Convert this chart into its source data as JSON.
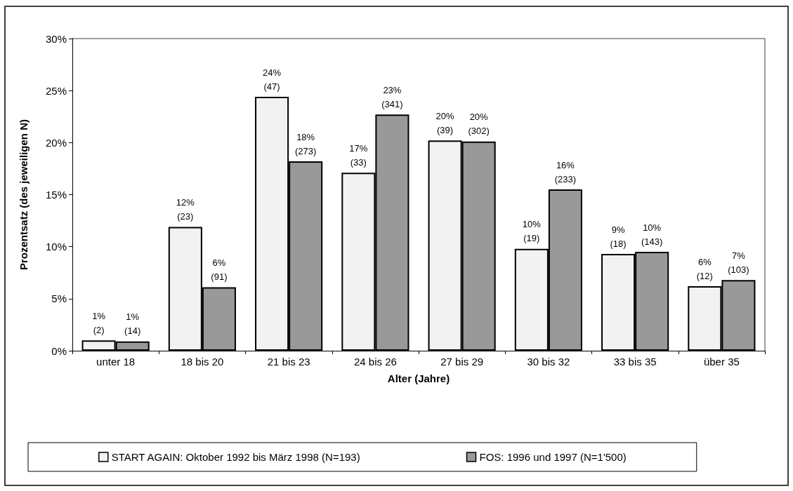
{
  "chart_data": {
    "type": "bar",
    "xlabel": "Alter (Jahre)",
    "ylabel": "Prozentsatz (des jeweiligen N)",
    "categories": [
      "unter 18",
      "18 bis 20",
      "21 bis 23",
      "24 bis 26",
      "27 bis 29",
      "30 bis 32",
      "33 bis 35",
      "über 35"
    ],
    "series": [
      {
        "name": "START AGAIN: Oktober 1992 bis März 1998 (N=193)",
        "color": "#f2f2f2",
        "values": [
          1.0,
          11.9,
          24.4,
          17.1,
          20.2,
          9.8,
          9.3,
          6.2
        ],
        "value_labels": [
          "1%\n(2)",
          "12%\n(23)",
          "24%\n(47)",
          "17%\n(33)",
          "20%\n(39)",
          "10%\n(19)",
          "9%\n(18)",
          "6%\n(12)"
        ]
      },
      {
        "name": "FOS: 1996 und 1997 (N=1'500)",
        "color": "#999999",
        "values": [
          0.9,
          6.1,
          18.2,
          22.7,
          20.1,
          15.5,
          9.5,
          6.8
        ],
        "value_labels": [
          "1%\n(14)",
          "6%\n(91)",
          "18%\n(273)",
          "23%\n(341)",
          "20%\n(302)",
          "16%\n(233)",
          "10%\n(143)",
          "7%\n(103)"
        ]
      }
    ],
    "ylim": [
      0,
      30
    ],
    "yticks": [
      {
        "value": 0,
        "label": "0%"
      },
      {
        "value": 5,
        "label": "5%"
      },
      {
        "value": 10,
        "label": "10%"
      },
      {
        "value": 15,
        "label": "15%"
      },
      {
        "value": 20,
        "label": "20%"
      },
      {
        "value": 25,
        "label": "25%"
      },
      {
        "value": 30,
        "label": "30%"
      }
    ],
    "grid": false,
    "legend": "bottom"
  }
}
